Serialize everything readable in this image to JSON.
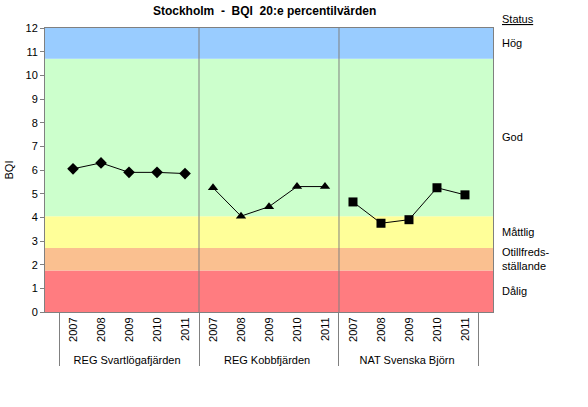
{
  "chart_data": {
    "type": "line",
    "title": "Stockholm  -  BQI  20:e percentilvärden",
    "y_label": "BQI",
    "status_title": "Status",
    "categories": [
      "2007",
      "2008",
      "2009",
      "2010",
      "2011"
    ],
    "series": [
      {
        "name": "REG Svartlögafjärden",
        "color": "#000000",
        "marker": "diamond",
        "values": [
          6.05,
          6.3,
          5.9,
          5.9,
          5.85
        ]
      },
      {
        "name": "REG Kobbfjärden",
        "color": "#000000",
        "marker": "triangle",
        "values": [
          5.25,
          4.05,
          4.45,
          5.3,
          5.3
        ]
      },
      {
        "name": "NAT Svenska Björn",
        "color": "#000000",
        "marker": "square",
        "values": [
          4.65,
          3.75,
          3.9,
          5.25,
          4.95
        ]
      }
    ],
    "bands": [
      {
        "label": [
          "Dålig"
        ],
        "from": 0,
        "to": 1.75,
        "color": "#ff7c80"
      },
      {
        "label": [
          "Otillfreds-",
          "ställande"
        ],
        "from": 1.75,
        "to": 2.7,
        "color": "#fac090"
      },
      {
        "label": [
          "Måttlig"
        ],
        "from": 2.7,
        "to": 4.05,
        "color": "#ffff99"
      },
      {
        "label": [
          "God"
        ],
        "from": 4.05,
        "to": 10.7,
        "color": "#ccffcc"
      },
      {
        "label": [
          "Hög"
        ],
        "from": 10.7,
        "to": 12,
        "color": "#99ccff"
      }
    ],
    "ylim": [
      0,
      12
    ],
    "yticks": [
      0,
      1,
      2,
      3,
      4,
      5,
      6,
      7,
      8,
      9,
      10,
      11,
      12
    ],
    "grid": false
  }
}
